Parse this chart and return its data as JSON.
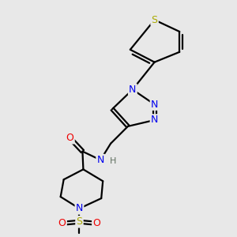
{
  "bg_color": "#e8e8e8",
  "atom_colors": {
    "C": "#000000",
    "N": "#0000ee",
    "O": "#ee0000",
    "S_thio": "#aaaa00",
    "S_sulfonyl": "#aaaa00",
    "H": "#607060"
  },
  "bond_color": "#000000",
  "bond_width": 1.6,
  "figsize": [
    3.0,
    3.0
  ],
  "dpi": 100
}
